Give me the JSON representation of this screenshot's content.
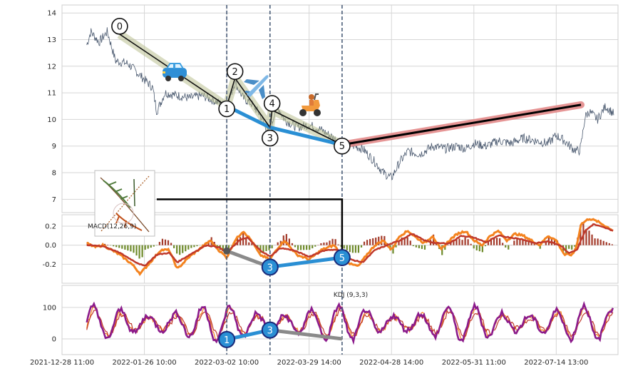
{
  "chart_data": {
    "type": "line",
    "x_tick_labels": [
      "2021-12-28 11:00",
      "2022-01-26 10:00",
      "2022-03-02 10:00",
      "2022-03-29 14:00",
      "2022-04-28 14:00",
      "2022-05-31 11:00",
      "2022-07-14 13:00"
    ],
    "x_tick_positions": [
      0,
      20,
      40,
      60,
      80,
      100,
      120
    ],
    "xlim": [
      0,
      135
    ],
    "vertical_marker_lines_x": [
      40,
      50.5,
      68
    ],
    "panels": [
      {
        "name": "price",
        "ylim": [
          6.5,
          14.3
        ],
        "y_ticks": [
          7,
          8,
          9,
          10,
          11,
          12,
          13,
          14
        ],
        "price_keypoints": [
          [
            6,
            12.8
          ],
          [
            7,
            13.3
          ],
          [
            9,
            12.9
          ],
          [
            11,
            13.3
          ],
          [
            13,
            12.2
          ],
          [
            16,
            12.1
          ],
          [
            18,
            11.8
          ],
          [
            20,
            11.5
          ],
          [
            22,
            11.2
          ],
          [
            23,
            10.3
          ],
          [
            25,
            11.0
          ],
          [
            28,
            10.9
          ],
          [
            31,
            10.8
          ],
          [
            34,
            10.9
          ],
          [
            37,
            10.7
          ],
          [
            40,
            10.5
          ],
          [
            42,
            11.4
          ],
          [
            44,
            10.8
          ],
          [
            46,
            10.6
          ],
          [
            48,
            10.2
          ],
          [
            50.5,
            9.4
          ],
          [
            52,
            10.6
          ],
          [
            54,
            10.0
          ],
          [
            57,
            9.7
          ],
          [
            60,
            9.8
          ],
          [
            63,
            9.6
          ],
          [
            66,
            9.3
          ],
          [
            68,
            9.1
          ],
          [
            71,
            9.0
          ],
          [
            73,
            8.9
          ],
          [
            76,
            8.4
          ],
          [
            78,
            8.0
          ],
          [
            80,
            7.8
          ],
          [
            82,
            8.4
          ],
          [
            84,
            8.8
          ],
          [
            87,
            8.7
          ],
          [
            90,
            9.0
          ],
          [
            93,
            8.9
          ],
          [
            96,
            9.0
          ],
          [
            98,
            8.9
          ],
          [
            100,
            9.1
          ],
          [
            103,
            9.0
          ],
          [
            106,
            9.2
          ],
          [
            109,
            9.1
          ],
          [
            112,
            9.3
          ],
          [
            115,
            9.2
          ],
          [
            118,
            9.1
          ],
          [
            120,
            9.4
          ],
          [
            122,
            9.2
          ],
          [
            124,
            8.9
          ],
          [
            125.5,
            8.8
          ],
          [
            126,
            9.0
          ],
          [
            127,
            10.1
          ],
          [
            128,
            10.3
          ],
          [
            130,
            10.0
          ],
          [
            132,
            10.5
          ],
          [
            134,
            10.2
          ]
        ],
        "wave_points": [
          {
            "label": "0",
            "x": 14,
            "y": 13.5
          },
          {
            "label": "1",
            "x": 40,
            "y": 10.4
          },
          {
            "label": "2",
            "x": 42,
            "y": 11.8
          },
          {
            "label": "3",
            "x": 50.5,
            "y": 9.3
          },
          {
            "label": "4",
            "x": 51,
            "y": 10.6
          },
          {
            "label": "5",
            "x": 68,
            "y": 9.0
          }
        ],
        "wave_path_points": [
          [
            14,
            13.2
          ],
          [
            40,
            10.5
          ],
          [
            42,
            11.55
          ],
          [
            50.5,
            9.7
          ],
          [
            51,
            10.35
          ],
          [
            68,
            9.05
          ]
        ],
        "trend_line": {
          "from": [
            68,
            9.05
          ],
          "to": [
            126,
            10.55
          ]
        },
        "blue_line": [
          [
            40,
            10.5
          ],
          [
            50.5,
            9.7
          ],
          [
            68,
            9.05
          ]
        ]
      },
      {
        "name": "macd",
        "label": "MACD(12,26,9)",
        "ylim": [
          -0.4,
          0.32
        ],
        "y_ticks": [
          -0.2,
          0.0,
          0.2
        ],
        "dif_keypoints": [
          [
            6,
            0.02
          ],
          [
            8,
            -0.02
          ],
          [
            10,
            0.0
          ],
          [
            12,
            -0.05
          ],
          [
            14,
            -0.1
          ],
          [
            17,
            -0.2
          ],
          [
            19,
            -0.3
          ],
          [
            21,
            -0.2
          ],
          [
            24,
            -0.05
          ],
          [
            26,
            -0.05
          ],
          [
            28,
            -0.25
          ],
          [
            31,
            -0.12
          ],
          [
            34,
            -0.02
          ],
          [
            36,
            0.05
          ],
          [
            38,
            -0.05
          ],
          [
            40,
            -0.13
          ],
          [
            42,
            0.05
          ],
          [
            44,
            0.15
          ],
          [
            46,
            0.05
          ],
          [
            48,
            -0.1
          ],
          [
            50.5,
            -0.15
          ],
          [
            52,
            -0.05
          ],
          [
            54,
            0.05
          ],
          [
            57,
            -0.1
          ],
          [
            60,
            -0.15
          ],
          [
            63,
            -0.05
          ],
          [
            66,
            0.0
          ],
          [
            68,
            -0.1
          ],
          [
            70,
            -0.2
          ],
          [
            72,
            -0.22
          ],
          [
            74,
            -0.1
          ],
          [
            76,
            0.0
          ],
          [
            78,
            0.05
          ],
          [
            80,
            -0.05
          ],
          [
            82,
            0.1
          ],
          [
            84,
            0.15
          ],
          [
            86,
            0.08
          ],
          [
            88,
            0.02
          ],
          [
            90,
            0.1
          ],
          [
            92,
            -0.05
          ],
          [
            94,
            0.05
          ],
          [
            96,
            0.12
          ],
          [
            98,
            0.15
          ],
          [
            100,
            0.05
          ],
          [
            102,
            0.0
          ],
          [
            104,
            0.1
          ],
          [
            106,
            0.15
          ],
          [
            108,
            0.05
          ],
          [
            110,
            0.12
          ],
          [
            112,
            0.1
          ],
          [
            114,
            0.05
          ],
          [
            116,
            0.0
          ],
          [
            118,
            0.1
          ],
          [
            120,
            0.05
          ],
          [
            122,
            -0.1
          ],
          [
            124,
            -0.1
          ],
          [
            125,
            0.0
          ],
          [
            126,
            0.22
          ],
          [
            128,
            0.28
          ],
          [
            130,
            0.25
          ],
          [
            132,
            0.2
          ],
          [
            134,
            0.15
          ]
        ],
        "dea_keypoints": [
          [
            6,
            0.0
          ],
          [
            10,
            -0.01
          ],
          [
            14,
            -0.08
          ],
          [
            18,
            -0.18
          ],
          [
            20,
            -0.22
          ],
          [
            23,
            -0.1
          ],
          [
            26,
            -0.08
          ],
          [
            28,
            -0.18
          ],
          [
            31,
            -0.1
          ],
          [
            35,
            0.0
          ],
          [
            38,
            -0.02
          ],
          [
            40,
            -0.08
          ],
          [
            43,
            0.05
          ],
          [
            45,
            0.08
          ],
          [
            48,
            -0.05
          ],
          [
            50.5,
            -0.12
          ],
          [
            53,
            -0.03
          ],
          [
            56,
            -0.05
          ],
          [
            60,
            -0.12
          ],
          [
            64,
            -0.05
          ],
          [
            67,
            -0.05
          ],
          [
            70,
            -0.15
          ],
          [
            73,
            -0.18
          ],
          [
            76,
            -0.05
          ],
          [
            79,
            0.0
          ],
          [
            82,
            0.05
          ],
          [
            85,
            0.12
          ],
          [
            88,
            0.05
          ],
          [
            91,
            0.02
          ],
          [
            94,
            0.02
          ],
          [
            97,
            0.1
          ],
          [
            100,
            0.08
          ],
          [
            103,
            0.03
          ],
          [
            106,
            0.1
          ],
          [
            109,
            0.08
          ],
          [
            112,
            0.06
          ],
          [
            115,
            0.02
          ],
          [
            118,
            0.04
          ],
          [
            121,
            0.0
          ],
          [
            123,
            -0.08
          ],
          [
            125,
            -0.05
          ],
          [
            127,
            0.15
          ],
          [
            129,
            0.22
          ],
          [
            132,
            0.18
          ],
          [
            134,
            0.15
          ]
        ],
        "wave_points": [
          {
            "label": "3",
            "x": 50.5,
            "y": -0.23
          },
          {
            "label": "5",
            "x": 68,
            "y": -0.13
          }
        ],
        "gray_dot": {
          "x": 40,
          "y": -0.06
        }
      },
      {
        "name": "kdj",
        "label": "KDJ (9,3,3)",
        "ylim": [
          -50,
          170
        ],
        "y_ticks": [
          0,
          100
        ],
        "wave_points": [
          {
            "label": "1",
            "x": 40,
            "y": -2
          },
          {
            "label": "3",
            "x": 50.5,
            "y": 28
          }
        ],
        "gray_end": {
          "x": 68,
          "y": 0
        }
      }
    ],
    "connector_line_points": [
      [
        23,
        7.0
      ],
      [
        68,
        7.0
      ],
      [
        68,
        -0.12
      ]
    ]
  }
}
